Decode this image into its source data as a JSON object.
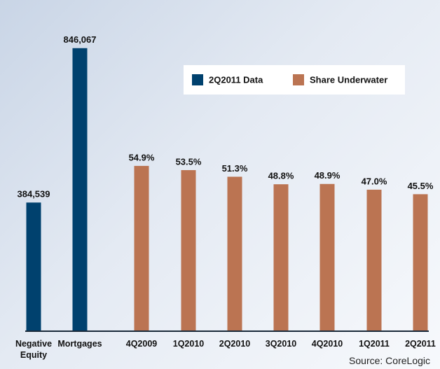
{
  "chart_data": {
    "type": "bar",
    "source": "Source:  CoreLogic",
    "categories": [
      "Negative Equity",
      "Mortgages",
      "4Q2009",
      "1Q2010",
      "2Q2010",
      "3Q2010",
      "4Q2010",
      "1Q2011",
      "2Q2011"
    ],
    "series": [
      {
        "name": "2Q2011 Data",
        "color": "#00416e",
        "values": [
          384539,
          846067,
          null,
          null,
          null,
          null,
          null,
          null,
          null
        ],
        "value_labels": [
          "384,539",
          "846,067",
          null,
          null,
          null,
          null,
          null,
          null,
          null
        ]
      },
      {
        "name": "Share Underwater",
        "color": "#bb7452",
        "axis": "y2",
        "values": [
          null,
          null,
          54.9,
          53.5,
          51.3,
          48.8,
          48.9,
          47.0,
          45.5
        ],
        "value_labels": [
          null,
          null,
          "54.9%",
          "53.5%",
          "51.3%",
          "48.8%",
          "48.9%",
          "47.0%",
          "45.5%"
        ]
      }
    ],
    "ylim": [
      0,
      900000
    ],
    "y2lim": [
      0,
      100
    ],
    "legend": "top-right"
  }
}
